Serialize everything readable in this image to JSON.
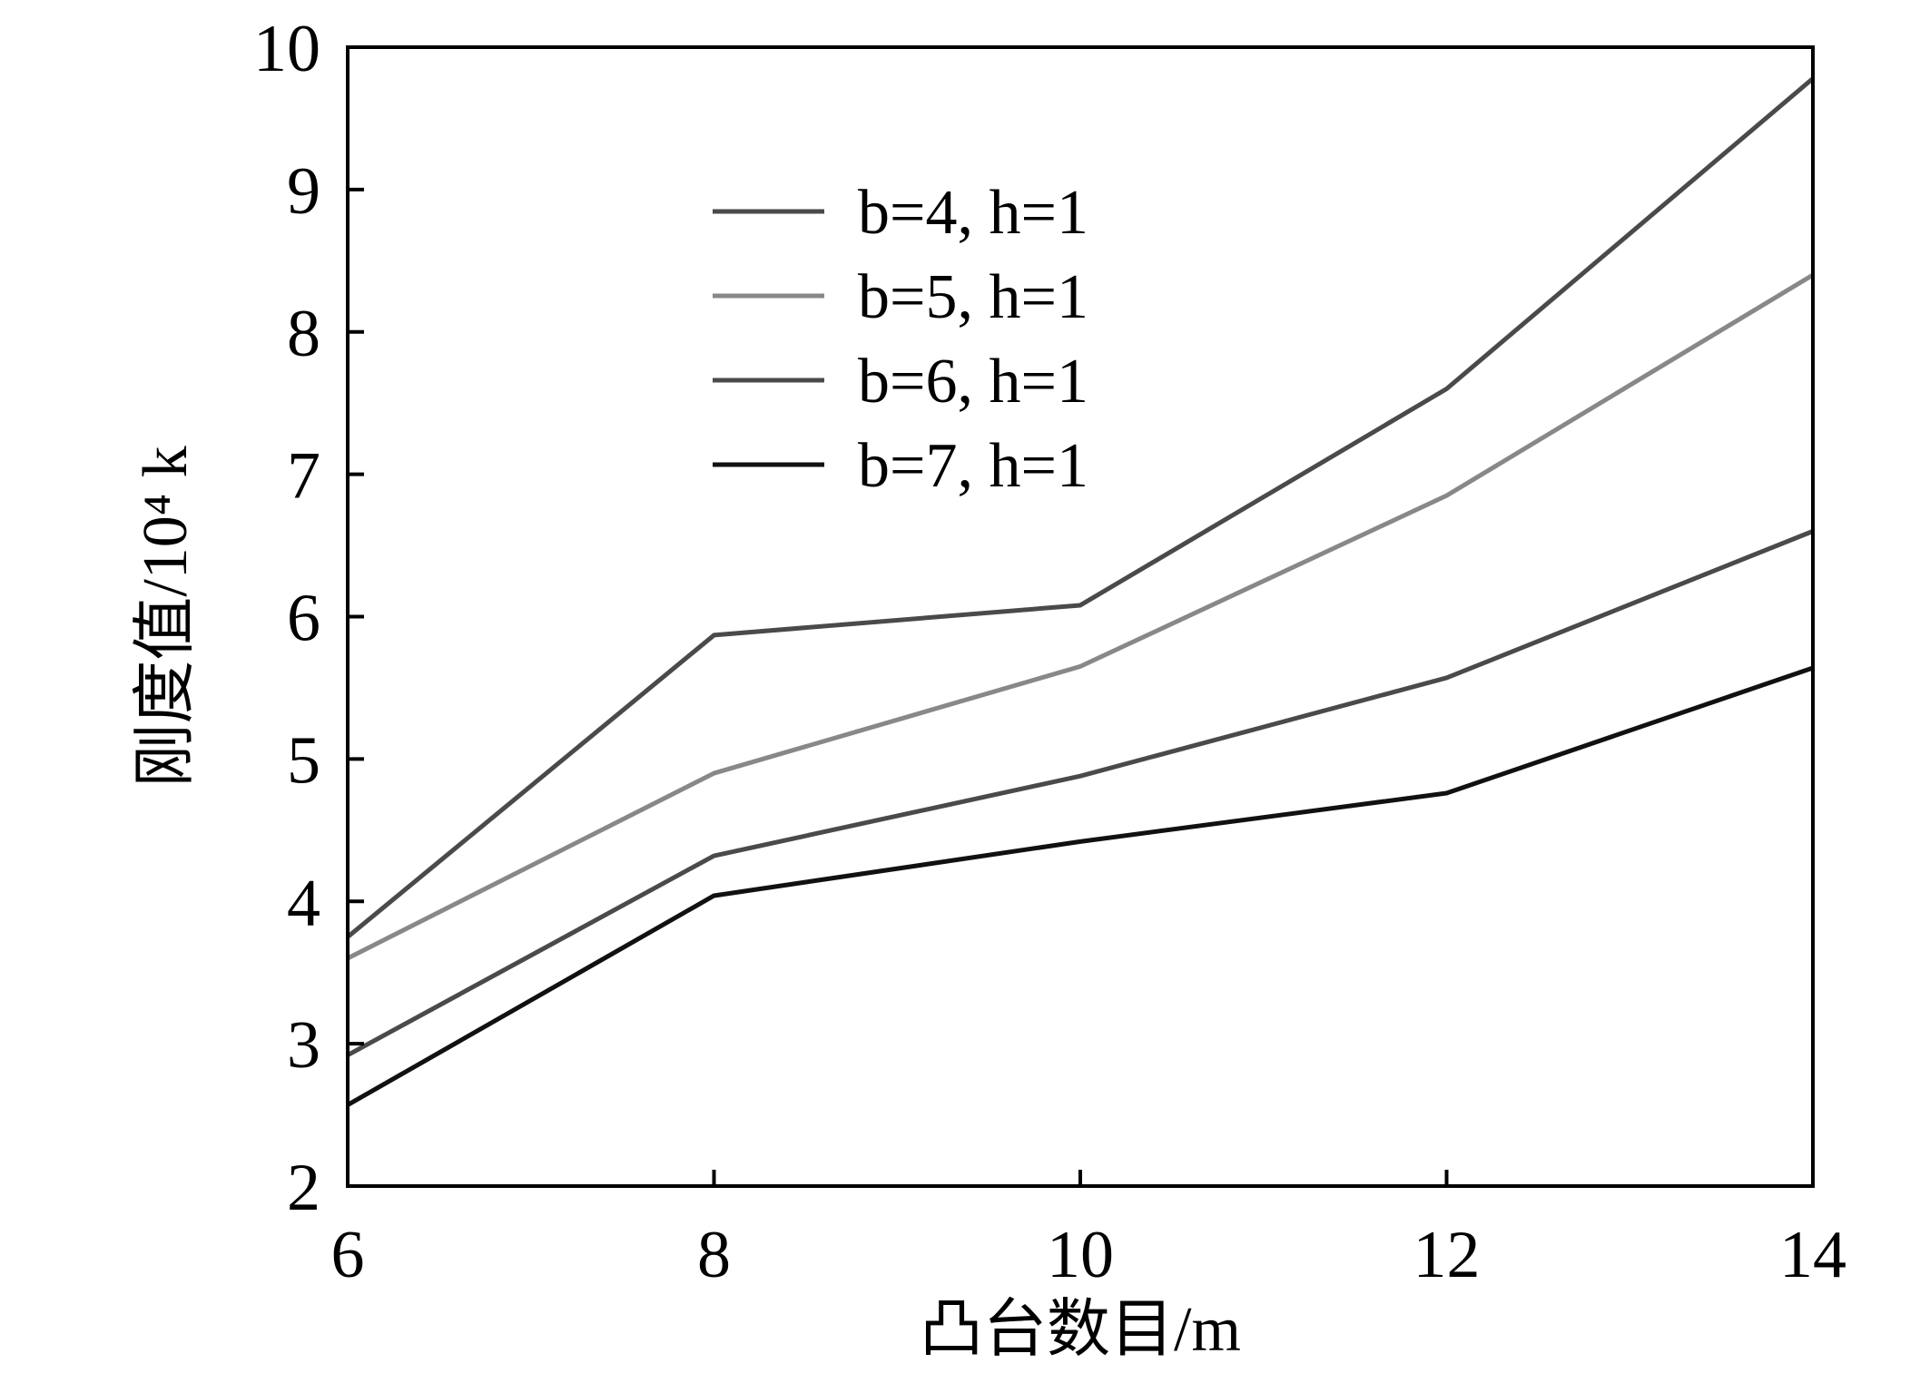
{
  "chart_data": {
    "type": "line",
    "title": "",
    "xlabel": "凸台数目/m",
    "ylabel": "刚度值/10⁴ k",
    "xlim": [
      6,
      14
    ],
    "ylim": [
      2,
      10
    ],
    "x_ticks": [
      "6",
      "8",
      "10",
      "12",
      "14"
    ],
    "y_ticks": [
      "2",
      "3",
      "4",
      "5",
      "6",
      "7",
      "8",
      "9",
      "10"
    ],
    "grid": false,
    "legend_position": "top-left",
    "x": [
      6,
      8,
      10,
      12,
      14
    ],
    "series": [
      {
        "name": "b=4, h=1",
        "color": "#4a4a4a",
        "values": [
          3.75,
          5.87,
          6.08,
          7.6,
          9.78
        ]
      },
      {
        "name": "b=5, h=1",
        "color": "#888888",
        "values": [
          3.6,
          4.9,
          5.65,
          6.85,
          8.4
        ]
      },
      {
        "name": "b=6, h=1",
        "color": "#4a4a4a",
        "values": [
          2.92,
          4.32,
          4.88,
          5.57,
          6.6
        ]
      },
      {
        "name": "b=7, h=1",
        "color": "#111111",
        "values": [
          2.57,
          4.04,
          4.42,
          4.76,
          5.64
        ]
      }
    ]
  }
}
